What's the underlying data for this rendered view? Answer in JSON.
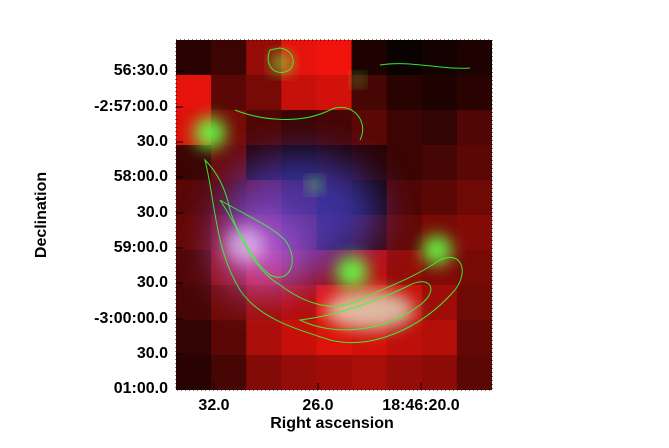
{
  "figure": {
    "y_label": "Declination",
    "x_label": "Right ascension",
    "yticks": [
      "56:30.0",
      "-2:57:00.0",
      "30.0",
      "58:00.0",
      "30.0",
      "59:00.0",
      "30.0",
      "-3:00:00.0",
      "30.0",
      "01:00.0"
    ],
    "xticks": [
      "32.0",
      "26.0",
      "18:46:20.0"
    ]
  }
}
